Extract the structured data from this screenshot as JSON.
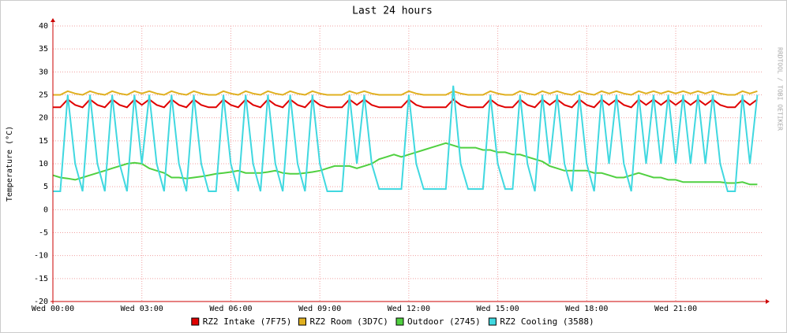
{
  "chart_data": {
    "type": "line",
    "title": "Last 24 hours",
    "y_label": "Temperature (°C)",
    "watermark": "RRDTOOL / TOBI OETIKER",
    "x": [
      0,
      0.25,
      0.5,
      0.75,
      1,
      1.25,
      1.5,
      1.75,
      2,
      2.25,
      2.5,
      2.75,
      3,
      3.25,
      3.5,
      3.75,
      4,
      4.25,
      4.5,
      4.75,
      5,
      5.25,
      5.5,
      5.75,
      6,
      6.25,
      6.5,
      6.75,
      7,
      7.25,
      7.5,
      7.75,
      8,
      8.25,
      8.5,
      8.75,
      9,
      9.25,
      9.5,
      9.75,
      10,
      10.25,
      10.5,
      10.75,
      11,
      11.25,
      11.5,
      11.75,
      12,
      12.25,
      12.5,
      12.75,
      13,
      13.25,
      13.5,
      13.75,
      14,
      14.25,
      14.5,
      14.75,
      15,
      15.25,
      15.5,
      15.75,
      16,
      16.25,
      16.5,
      16.75,
      17,
      17.25,
      17.5,
      17.75,
      18,
      18.25,
      18.5,
      18.75,
      19,
      19.25,
      19.5,
      19.75,
      20,
      20.25,
      20.5,
      20.75,
      21,
      21.25,
      21.5,
      21.75,
      22,
      22.25,
      22.5,
      22.75,
      23,
      23.25,
      23.5,
      23.75
    ],
    "series": [
      {
        "name": "RZ2 Intake (7F75)",
        "color": "#e00000",
        "values": [
          22.3,
          22.3,
          24,
          22.8,
          22.3,
          24,
          22.8,
          22.3,
          24,
          22.8,
          22.3,
          24,
          22.8,
          24,
          22.8,
          22.3,
          24,
          22.8,
          22.3,
          24,
          22.8,
          22.3,
          22.3,
          24,
          22.8,
          22.3,
          24,
          22.8,
          22.3,
          24,
          22.8,
          22.3,
          24,
          22.8,
          22.3,
          24,
          22.8,
          22.3,
          22.3,
          22.3,
          24,
          22.8,
          24,
          22.8,
          22.3,
          22.3,
          22.3,
          22.3,
          24,
          22.8,
          22.3,
          22.3,
          22.3,
          22.3,
          24,
          22.8,
          22.3,
          22.3,
          22.3,
          24,
          22.8,
          22.3,
          22.3,
          24,
          22.8,
          22.3,
          24,
          22.8,
          24,
          22.8,
          22.3,
          24,
          22.8,
          22.3,
          24,
          22.8,
          24,
          22.8,
          22.3,
          24,
          22.8,
          24,
          22.8,
          24,
          22.8,
          24,
          22.8,
          24,
          22.8,
          24,
          22.8,
          22.3,
          22.3,
          24,
          22.8,
          24
        ]
      },
      {
        "name": "RZ2 Room (3D7C)",
        "color": "#e0b020",
        "values": [
          25,
          25,
          25.8,
          25.3,
          25,
          25.8,
          25.3,
          25,
          25.8,
          25.3,
          25,
          25.8,
          25.3,
          25.8,
          25.3,
          25,
          25.8,
          25.3,
          25,
          25.8,
          25.3,
          25,
          25,
          25.8,
          25.3,
          25,
          25.8,
          25.3,
          25,
          25.8,
          25.3,
          25,
          25.8,
          25.3,
          25,
          25.8,
          25.3,
          25,
          25,
          25,
          25.8,
          25.3,
          25.8,
          25.3,
          25,
          25,
          25,
          25,
          25.8,
          25.3,
          25,
          25,
          25,
          25,
          25.8,
          25.3,
          25,
          25,
          25,
          25.8,
          25.3,
          25,
          25,
          25.8,
          25.3,
          25,
          25.8,
          25.3,
          25.8,
          25.3,
          25,
          25.8,
          25.3,
          25,
          25.8,
          25.3,
          25.8,
          25.3,
          25,
          25.8,
          25.3,
          25.8,
          25.3,
          25.8,
          25.3,
          25.8,
          25.3,
          25.8,
          25.3,
          25.8,
          25.3,
          25,
          25,
          25.8,
          25.3,
          25.8
        ]
      },
      {
        "name": "Outdoor (2745)",
        "color": "#50d040",
        "values": [
          7.5,
          7,
          6.8,
          6.5,
          7,
          7.5,
          8,
          8.5,
          9,
          9.5,
          10,
          10.2,
          10,
          9,
          8.5,
          8,
          7,
          7,
          6.8,
          7,
          7.2,
          7.5,
          7.8,
          8,
          8.2,
          8.5,
          8,
          8,
          8,
          8.2,
          8.5,
          8,
          7.8,
          7.8,
          8,
          8.2,
          8.5,
          9,
          9.5,
          9.5,
          9.5,
          9,
          9.5,
          10,
          11,
          11.5,
          12,
          11.5,
          12,
          12.5,
          13,
          13.5,
          14,
          14.5,
          14,
          13.5,
          13.5,
          13.5,
          13,
          13,
          12.5,
          12.5,
          12,
          12,
          11.5,
          11,
          10.5,
          9.5,
          9,
          8.5,
          8.5,
          8.5,
          8.5,
          8,
          8,
          7.5,
          7,
          7,
          7.5,
          8,
          7.5,
          7,
          7,
          6.5,
          6.5,
          6,
          6,
          6,
          6,
          6,
          6,
          5.8,
          5.8,
          6,
          5.5,
          5.5
        ]
      },
      {
        "name": "RZ2 Cooling (3588)",
        "color": "#40d8e0",
        "values": [
          4,
          4,
          25,
          10,
          4,
          25,
          10,
          4,
          25,
          10,
          4,
          25,
          10,
          25,
          10,
          4,
          25,
          10,
          4,
          25,
          10,
          4,
          4,
          25,
          10,
          4,
          25,
          10,
          4,
          25,
          10,
          4,
          25,
          10,
          4,
          25,
          10,
          4,
          4,
          4,
          25,
          10,
          25,
          10,
          4.5,
          4.5,
          4.5,
          4.5,
          25,
          10,
          4.5,
          4.5,
          4.5,
          4.5,
          27,
          10,
          4.5,
          4.5,
          4.5,
          25,
          10,
          4.5,
          4.5,
          25,
          10,
          4,
          25,
          10,
          25,
          10,
          4,
          25,
          10,
          4,
          25,
          10,
          25,
          10,
          4,
          25,
          10,
          25,
          10,
          25,
          10,
          25,
          10,
          25,
          10,
          25,
          10,
          4,
          4,
          25,
          10,
          25
        ]
      }
    ],
    "xlim": [
      0,
      23.9
    ],
    "ylim": [
      -20,
      40
    ],
    "xticks": [
      {
        "value": 0,
        "label": "Wed 00:00"
      },
      {
        "value": 3,
        "label": "Wed 03:00"
      },
      {
        "value": 6,
        "label": "Wed 06:00"
      },
      {
        "value": 9,
        "label": "Wed 09:00"
      },
      {
        "value": 12,
        "label": "Wed 12:00"
      },
      {
        "value": 15,
        "label": "Wed 15:00"
      },
      {
        "value": 18,
        "label": "Wed 18:00"
      },
      {
        "value": 21,
        "label": "Wed 21:00"
      }
    ],
    "yticks": [
      -20,
      -15,
      -10,
      -5,
      0,
      5,
      10,
      15,
      20,
      25,
      30,
      35,
      40
    ],
    "grid": true
  }
}
